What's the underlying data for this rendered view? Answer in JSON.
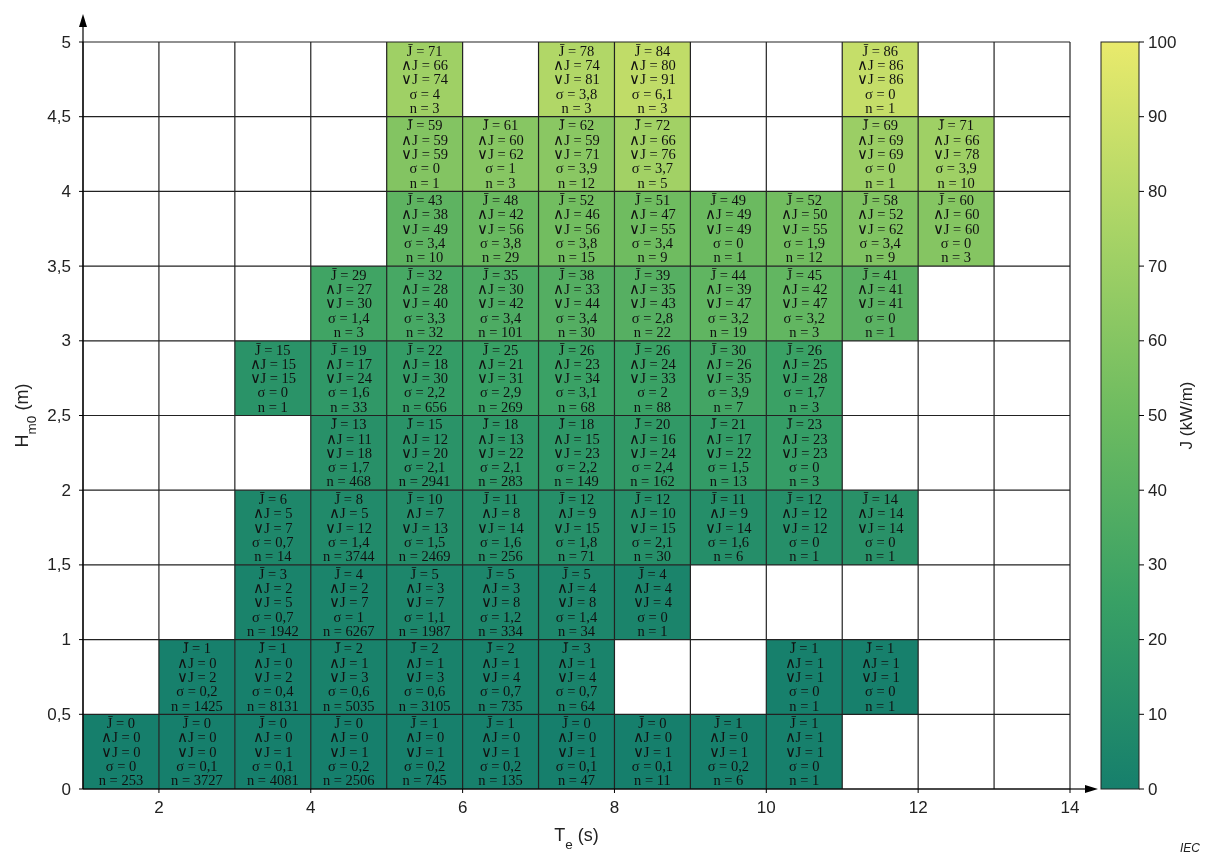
{
  "chart_data": {
    "type": "heatmap",
    "xlabel": "T$_{e}$ (s)",
    "ylabel": "H$_{m0}$ (m)",
    "clabel": "J (kW/m)",
    "x": [
      1.5,
      2.5,
      3.5,
      4.5,
      5.5,
      6.5,
      7.5,
      8.5,
      9.5,
      10.5,
      11.5,
      12.5,
      13.5
    ],
    "y": [
      4.75,
      4.25,
      3.75,
      3.25,
      2.75,
      2.25,
      1.75,
      1.25,
      0.75,
      0.25
    ],
    "xlim": [
      1,
      14
    ],
    "xticks": [
      2,
      4,
      6,
      8,
      10,
      12,
      14
    ],
    "ylim": [
      0,
      5
    ],
    "yticks": [
      0,
      {
        "value": 0.5,
        "label": "0,5"
      },
      1,
      {
        "value": 1.5,
        "label": "1,5"
      },
      2,
      {
        "value": 2.5,
        "label": "2,5"
      },
      3,
      {
        "value": 3.5,
        "label": "3,5"
      },
      4,
      {
        "value": 4.5,
        "label": "4,5"
      },
      5
    ],
    "clim": [
      0,
      100
    ],
    "cticks": [
      0,
      10,
      20,
      30,
      40,
      50,
      60,
      70,
      80,
      90,
      100
    ],
    "grid": true,
    "cells": [
      [
        null,
        null,
        null,
        null,
        71,
        null,
        78,
        84,
        null,
        null,
        86,
        null,
        null
      ],
      [
        null,
        null,
        null,
        null,
        59,
        61,
        62,
        72,
        null,
        null,
        69,
        71,
        null
      ],
      [
        null,
        null,
        null,
        null,
        43,
        48,
        52,
        51,
        49,
        52,
        58,
        60,
        null
      ],
      [
        null,
        null,
        null,
        29,
        32,
        35,
        38,
        39,
        44,
        45,
        41,
        null,
        null
      ],
      [
        null,
        null,
        15,
        19,
        22,
        25,
        26,
        26,
        30,
        26,
        null,
        null,
        null
      ],
      [
        null,
        null,
        null,
        13,
        15,
        18,
        18,
        20,
        21,
        23,
        null,
        null,
        null
      ],
      [
        null,
        null,
        6,
        8,
        10,
        11,
        12,
        12,
        11,
        12,
        14,
        null,
        null
      ],
      [
        null,
        null,
        3,
        4,
        5,
        5,
        5,
        4,
        null,
        null,
        null,
        null,
        null
      ],
      [
        null,
        1,
        1,
        2,
        2,
        2,
        3,
        null,
        null,
        1,
        1,
        null,
        null
      ],
      [
        0,
        0,
        0,
        0,
        1,
        1,
        0,
        0,
        1,
        1,
        null,
        null,
        null
      ]
    ],
    "cell_labels": [
      [
        null,
        null,
        null,
        null,
        "J̄ = 71\n∧J = 66\n∨J = 74\nσ = 4\nn = 3",
        null,
        "J̄ = 78\n∧J = 74\n∨J = 81\nσ = 3,8\nn = 3",
        "J̄ = 84\n∧J = 80\n∨J = 91\nσ = 6,1\nn = 3",
        null,
        null,
        "J̄ = 86\n∧J = 86\n∨J = 86\nσ = 0\nn = 1",
        null,
        null
      ],
      [
        null,
        null,
        null,
        null,
        "J̄ = 59\n∧J = 59\n∨J = 59\nσ = 0\nn = 1",
        "J̄ = 61\n∧J = 60\n∨J = 62\nσ = 1\nn = 3",
        "J̄ = 62\n∧J = 59\n∨J = 71\nσ = 3,9\nn = 12",
        "J̄ = 72\n∧J = 66\n∨J = 76\nσ = 3,7\nn = 5",
        null,
        null,
        "J̄ = 69\n∧J = 69\n∨J = 69\nσ = 0\nn = 1",
        "J̄ = 71\n∧J = 66\n∨J = 78\nσ = 3,9\nn = 10",
        null
      ],
      [
        null,
        null,
        null,
        null,
        "J̄ = 43\n∧J = 38\n∨J = 49\nσ = 3,4\nn = 10",
        "J̄ = 48\n∧J = 42\n∨J = 56\nσ = 3,8\nn = 29",
        "J̄ = 52\n∧J = 46\n∨J = 56\nσ = 3,8\nn = 15",
        "J̄ = 51\n∧J = 47\n∨J = 55\nσ = 3,4\nn = 9",
        "J̄ = 49\n∧J = 49\n∨J = 49\nσ = 0\nn = 1",
        "J̄ = 52\n∧J = 50\n∨J = 55\nσ = 1,9\nn = 12",
        "J̄ = 58\n∧J = 52\n∨J = 62\nσ = 3,4\nn = 9",
        "J̄ = 60\n∧J = 60\n∨J = 60\nσ = 0\nn = 3",
        null
      ],
      [
        null,
        null,
        null,
        "J̄ = 29\n∧J = 27\n∨J = 30\nσ = 1,4\nn = 3",
        "J̄ = 32\n∧J = 28\n∨J = 40\nσ = 3,3\nn = 32",
        "J̄ = 35\n∧J = 30\n∨J = 42\nσ = 3,4\nn = 101",
        "J̄ = 38\n∧J = 33\n∨J = 44\nσ = 3,4\nn = 30",
        "J̄ = 39\n∧J = 35\n∨J = 43\nσ = 2,8\nn = 22",
        "J̄ = 44\n∧J = 39\n∨J = 47\nσ = 3,2\nn = 19",
        "J̄ = 45\n∧J = 42\n∨J = 47\nσ = 3,2\nn = 3",
        "J̄ = 41\n∧J = 41\n∨J = 41\nσ = 0\nn = 1",
        null,
        null
      ],
      [
        null,
        null,
        "J̄ = 15\n∧J = 15\n∨J = 15\nσ = 0\nn = 1",
        "J̄ = 19\n∧J = 17\n∨J = 24\nσ = 1,6\nn = 33",
        "J̄ = 22\n∧J = 18\n∨J = 30\nσ = 2,2\nn = 656",
        "J̄ = 25\n∧J = 21\n∨J = 31\nσ = 2,9\nn = 269",
        "J̄ = 26\n∧J = 23\n∨J = 34\nσ = 3,1\nn = 68",
        "J̄ = 26\n∧J = 24\n∨J = 33\nσ = 2\nn = 88",
        "J̄ = 30\n∧J = 26\n∨J = 35\nσ = 3,9\nn = 7",
        "J̄ = 26\n∧J = 25\n∨J = 28\nσ = 1,7\nn = 3",
        null,
        null,
        null
      ],
      [
        null,
        null,
        null,
        "J̄ = 13\n∧J = 11\n∨J = 18\nσ = 1,7\nn = 468",
        "J̄ = 15\n∧J = 12\n∨J = 20\nσ = 2,1\nn = 2941",
        "J̄ = 18\n∧J = 13\n∨J = 22\nσ = 2,1\nn = 283",
        "J̄ = 18\n∧J = 15\n∨J = 23\nσ = 2,2\nn = 149",
        "J̄ = 20\n∧J = 16\n∨J = 24\nσ = 2,4\nn = 162",
        "J̄ = 21\n∧J = 17\n∨J = 22\nσ = 1,5\nn = 13",
        "J̄ = 23\n∧J = 23\n∨J = 23\nσ = 0\nn = 3",
        null,
        null,
        null
      ],
      [
        null,
        null,
        "J̄ = 6\n∧J = 5\n∨J = 7\nσ = 0,7\nn = 14",
        "J̄ = 8\n∧J = 5\n∨J = 12\nσ = 1,4\nn = 3744",
        "J̄ = 10\n∧J = 7\n∨J = 13\nσ = 1,5\nn = 2469",
        "J̄ = 11\n∧J = 8\n∨J = 14\nσ = 1,6\nn = 256",
        "J̄ = 12\n∧J = 9\n∨J = 15\nσ = 1,8\nn = 71",
        "J̄ = 12\n∧J = 10\n∨J = 15\nσ = 2,1\nn = 30",
        "J̄ = 11\n∧J = 9\n∨J = 14\nσ = 1,6\nn = 6",
        "J̄ = 12\n∧J = 12\n∨J = 12\nσ = 0\nn = 1",
        "J̄ = 14\n∧J = 14\n∨J = 14\nσ = 0\nn = 1",
        null,
        null
      ],
      [
        null,
        null,
        "J̄ = 3\n∧J = 2\n∨J = 5\nσ = 0,7\nn = 1942",
        "J̄ = 4\n∧J = 2\n∨J = 7\nσ = 1\nn = 6267",
        "J̄ = 5\n∧J = 3\n∨J = 7\nσ = 1,1\nn = 1987",
        "J̄ = 5\n∧J = 3\n∨J = 8\nσ = 1,2\nn = 334",
        "J̄ = 5\n∧J = 4\n∨J = 8\nσ = 1,4\nn = 34",
        "J̄ = 4\n∧J = 4\n∨J = 4\nσ = 0\nn = 1",
        null,
        null,
        null,
        null,
        null
      ],
      [
        null,
        "J̄ = 1\n∧J = 0\n∨J = 2\nσ = 0,2\nn = 1425",
        "J̄ = 1\n∧J = 0\n∨J = 2\nσ = 0,4\nn = 8131",
        "J̄ = 2\n∧J = 1\n∨J = 3\nσ = 0,6\nn = 5035",
        "J̄ = 2\n∧J = 1\n∨J = 3\nσ = 0,6\nn = 3105",
        "J̄ = 2\n∧J = 1\n∨J = 4\nσ = 0,7\nn = 735",
        "J̄ = 3\n∧J = 1\n∨J = 4\nσ = 0,7\nn = 64",
        null,
        null,
        "J̄ = 1\n∧J = 1\n∨J = 1\nσ = 0\nn = 1",
        "J̄ = 1\n∧J = 1\n∨J = 1\nσ = 0\nn = 1",
        null,
        null
      ],
      [
        "J̄ = 0\n∧J = 0\n∨J = 0\nσ = 0\nn = 253",
        "J̄ = 0\n∧J = 0\n∨J = 0\nσ = 0,1\nn = 3727",
        "J̄ = 0\n∧J = 0\n∨J = 1\nσ = 0,1\nn = 4081",
        "J̄ = 0\n∧J = 0\n∨J = 1\nσ = 0,2\nn = 2506",
        "J̄ = 1\n∧J = 0\n∨J = 1\nσ = 0,2\nn = 745",
        "J̄ = 1\n∧J = 0\n∨J = 1\nσ = 0,2\nn = 135",
        "J̄ = 0\n∧J = 0\n∨J = 1\nσ = 0,1\nn = 47",
        "J̄ = 0\n∧J = 0\n∨J = 1\nσ = 0,1\nn = 11",
        "J̄ = 1\n∧J = 0\n∨J = 1\nσ = 0,2\nn = 6",
        "J̄ = 1\n∧J = 1\n∨J = 1\nσ = 0\nn = 1",
        null,
        null,
        null
      ]
    ],
    "annotations": [
      "IEC"
    ]
  }
}
